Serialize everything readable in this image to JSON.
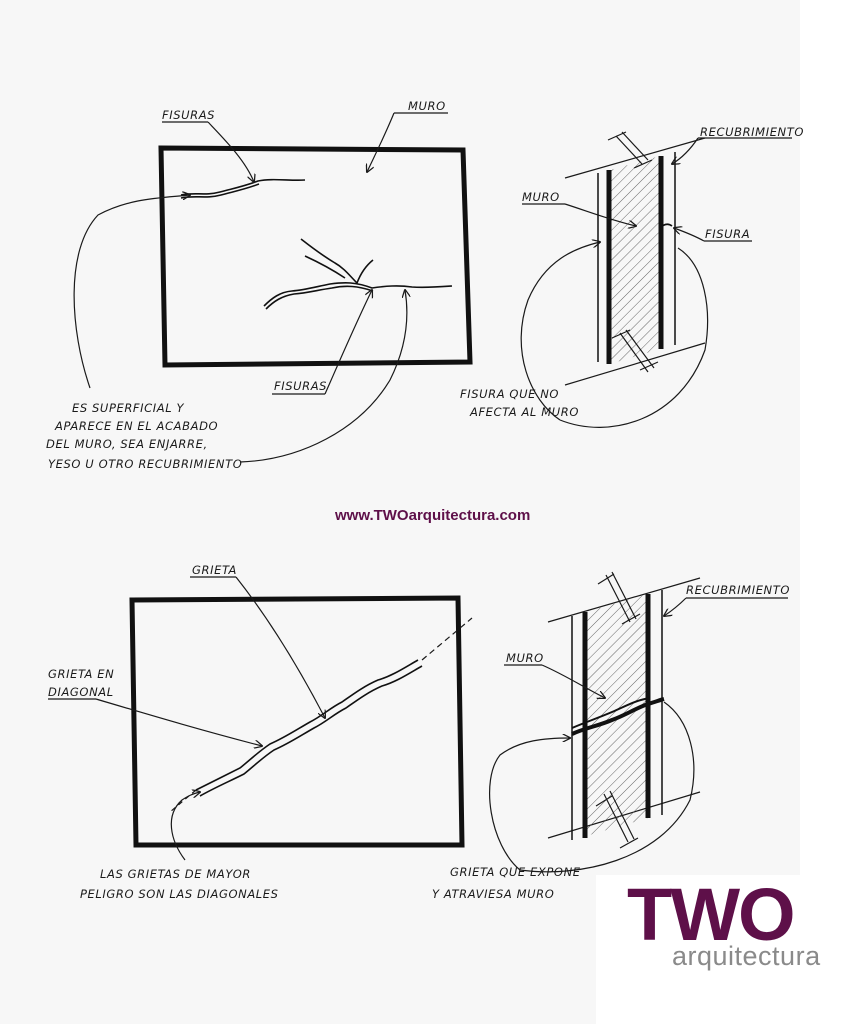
{
  "watermark": {
    "url": "www.TWOarquitectura.com",
    "url_color": "#5e1049"
  },
  "logo": {
    "big": "TWO",
    "small": "arquitectura",
    "big_color": "#5e1049",
    "small_color": "#8a8a8a"
  },
  "top_section": {
    "label_fisuras_top": "FISURAS",
    "label_muro": "MURO",
    "label_fisuras_bottom": "FISURAS",
    "note": [
      "ES SUPERFICIAL Y",
      "APARECE EN EL ACABADO",
      "DEL MURO, SEA ENJARRE,",
      "YESO U OTRO RECUBRIMIENTO"
    ],
    "section_label_recubrimiento": "RECUBRIMIENTO",
    "section_label_muro": "MURO",
    "section_label_fisura": "FISURA",
    "section_note": [
      "FISURA QUE NO",
      "AFECTA AL MURO"
    ]
  },
  "bottom_section": {
    "label_grieta": "GRIETA",
    "label_grieta_diagonal": [
      "GRIETA EN",
      "DIAGONAL"
    ],
    "note": [
      "LAS GRIETAS DE MAYOR",
      "PELIGRO SON LAS DIAGONALES"
    ],
    "section_label_recubrimiento": "RECUBRIMIENTO",
    "section_label_muro": "MURO",
    "section_note": [
      "GRIETA QUE EXPONE",
      "Y ATRAVIESA MURO"
    ]
  }
}
